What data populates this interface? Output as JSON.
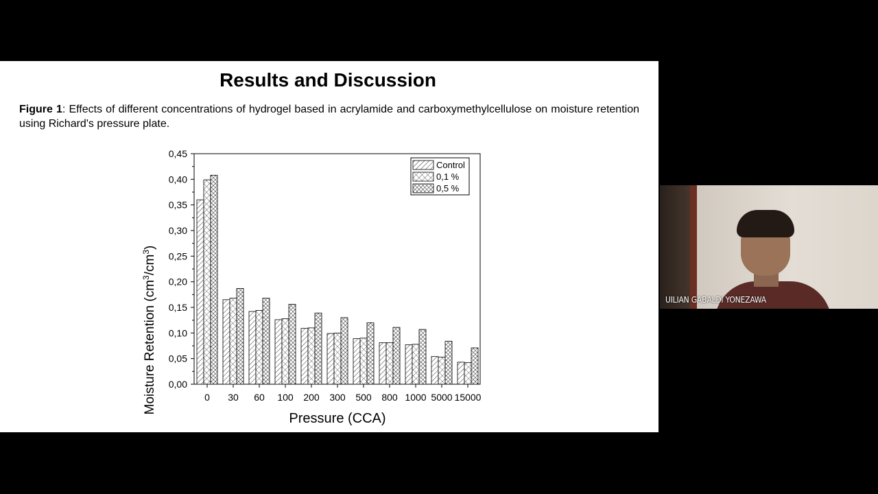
{
  "slide": {
    "title": "Results and Discussion",
    "caption_label": "Figure 1",
    "caption_text": ": Effects of different concentrations of hydrogel based in acrylamide and carboxymethylcellulose on moisture retention using Richard's pressure plate."
  },
  "chart_data": {
    "type": "bar",
    "xlabel": "Pressure (CCA)",
    "ylabel_main": "Moisture Retention (cm",
    "ylabel_sup1": "3",
    "ylabel_mid": "/cm",
    "ylabel_sup2": "3",
    "ylabel_end": ")",
    "ylim": [
      0,
      0.45
    ],
    "yticks": [
      "0,00",
      "0,05",
      "0,10",
      "0,15",
      "0,20",
      "0,25",
      "0,30",
      "0,35",
      "0,40",
      "0,45"
    ],
    "categories": [
      "0",
      "30",
      "60",
      "100",
      "200",
      "300",
      "500",
      "800",
      "1000",
      "5000",
      "15000"
    ],
    "series": [
      {
        "name": "Control",
        "pattern": "hatch-diag",
        "values": [
          0.36,
          0.165,
          0.142,
          0.126,
          0.109,
          0.099,
          0.089,
          0.081,
          0.077,
          0.054,
          0.043
        ]
      },
      {
        "name": "0,1 %",
        "pattern": "hatch-cross-light",
        "values": [
          0.399,
          0.168,
          0.144,
          0.128,
          0.11,
          0.1,
          0.09,
          0.081,
          0.078,
          0.053,
          0.042
        ]
      },
      {
        "name": "0,5 %",
        "pattern": "hatch-cross-dense",
        "values": [
          0.408,
          0.187,
          0.168,
          0.156,
          0.139,
          0.13,
          0.12,
          0.111,
          0.107,
          0.084,
          0.071
        ]
      }
    ],
    "legend_position": "top-right",
    "grid": false
  },
  "video": {
    "participant_name": "UILIAN GABALDI YONEZAWA"
  }
}
